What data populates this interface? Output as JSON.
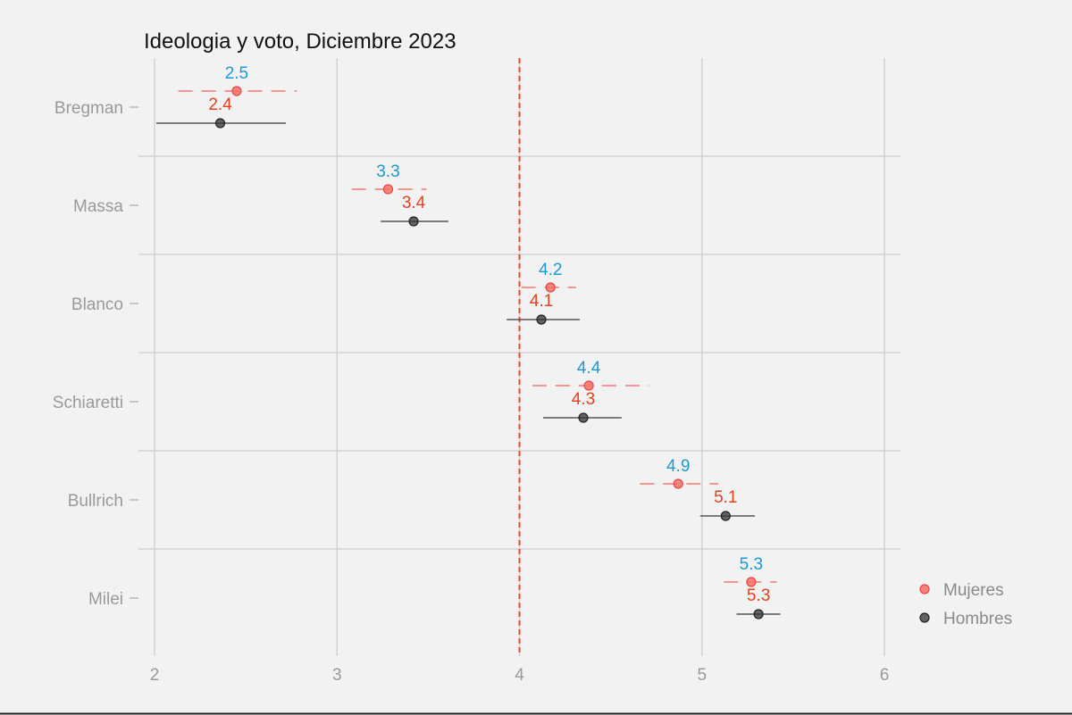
{
  "chart_data": {
    "type": "dot-errorbar",
    "title": "Ideologia y voto, Diciembre 2023",
    "xlabel": "",
    "ylabel": "",
    "xlim": [
      1.95,
      6.08
    ],
    "x_ticks": [
      "2",
      "3",
      "4",
      "5",
      "6"
    ],
    "reference_line": {
      "x": 4,
      "color": "#e8472a",
      "style": "dashed"
    },
    "grid": true,
    "legend_position": "right",
    "categories": [
      "Bregman",
      "Massa",
      "Blanco",
      "Schiaretti",
      "Bullrich",
      "Milei"
    ],
    "series": [
      {
        "name": "Mujeres",
        "color": "#f8766d",
        "label_color": "#1a9ad6",
        "line_style": "dashed",
        "values": [
          2.45,
          3.28,
          4.17,
          4.38,
          4.87,
          5.27
        ],
        "low": [
          2.13,
          3.08,
          4.01,
          4.07,
          4.66,
          5.12
        ],
        "high": [
          2.78,
          3.49,
          4.31,
          4.71,
          5.09,
          5.41
        ],
        "labels": [
          "2.5",
          "3.3",
          "4.2",
          "4.4",
          "4.9",
          "5.3"
        ]
      },
      {
        "name": "Hombres",
        "color": "#333333",
        "label_color": "#e8401c",
        "line_style": "solid",
        "values": [
          2.36,
          3.42,
          4.12,
          4.35,
          5.13,
          5.31
        ],
        "low": [
          2.01,
          3.24,
          3.93,
          4.13,
          4.99,
          5.19
        ],
        "high": [
          2.72,
          3.61,
          4.33,
          4.56,
          5.29,
          5.43
        ],
        "labels": [
          "2.4",
          "3.4",
          "4.1",
          "4.3",
          "5.1",
          "5.3"
        ]
      }
    ]
  }
}
